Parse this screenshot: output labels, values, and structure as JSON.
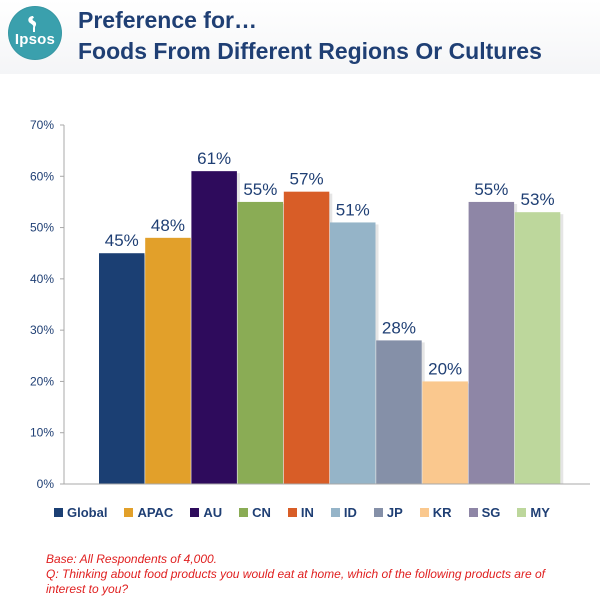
{
  "header": {
    "logo_text": "Ipsos",
    "title_line1": "Preference for…",
    "title_line2": "Foods From Different Regions Or Cultures"
  },
  "chart_data": {
    "type": "bar",
    "title": "Preference for… Foods From Different Regions Or Cultures",
    "categories": [
      "Global",
      "APAC",
      "AU",
      "CN",
      "IN",
      "ID",
      "JP",
      "KR",
      "SG",
      "MY"
    ],
    "values": [
      45,
      48,
      61,
      55,
      57,
      51,
      28,
      20,
      55,
      53
    ],
    "value_labels": [
      "45%",
      "48%",
      "61%",
      "55%",
      "57%",
      "51%",
      "28%",
      "20%",
      "55%",
      "53%"
    ],
    "colors": [
      "#1b3f73",
      "#e2a02a",
      "#2e0b5c",
      "#8aac55",
      "#d85d27",
      "#95b4c8",
      "#8590a8",
      "#fac88e",
      "#8e86a6",
      "#bdd79c"
    ],
    "ylim": [
      0,
      70
    ],
    "yticks": [
      0,
      10,
      20,
      30,
      40,
      50,
      60,
      70
    ],
    "ytick_labels": [
      "0%",
      "10%",
      "20%",
      "30%",
      "40%",
      "50%",
      "60%",
      "70%"
    ],
    "xlabel": "",
    "ylabel": "",
    "grid": false,
    "legend_position": "bottom"
  },
  "footnotes": {
    "base": "Base: All Respondents  of 4,000.",
    "question": "Q: Thinking about food products you would eat at home, which of the following products are of interest to you?"
  }
}
